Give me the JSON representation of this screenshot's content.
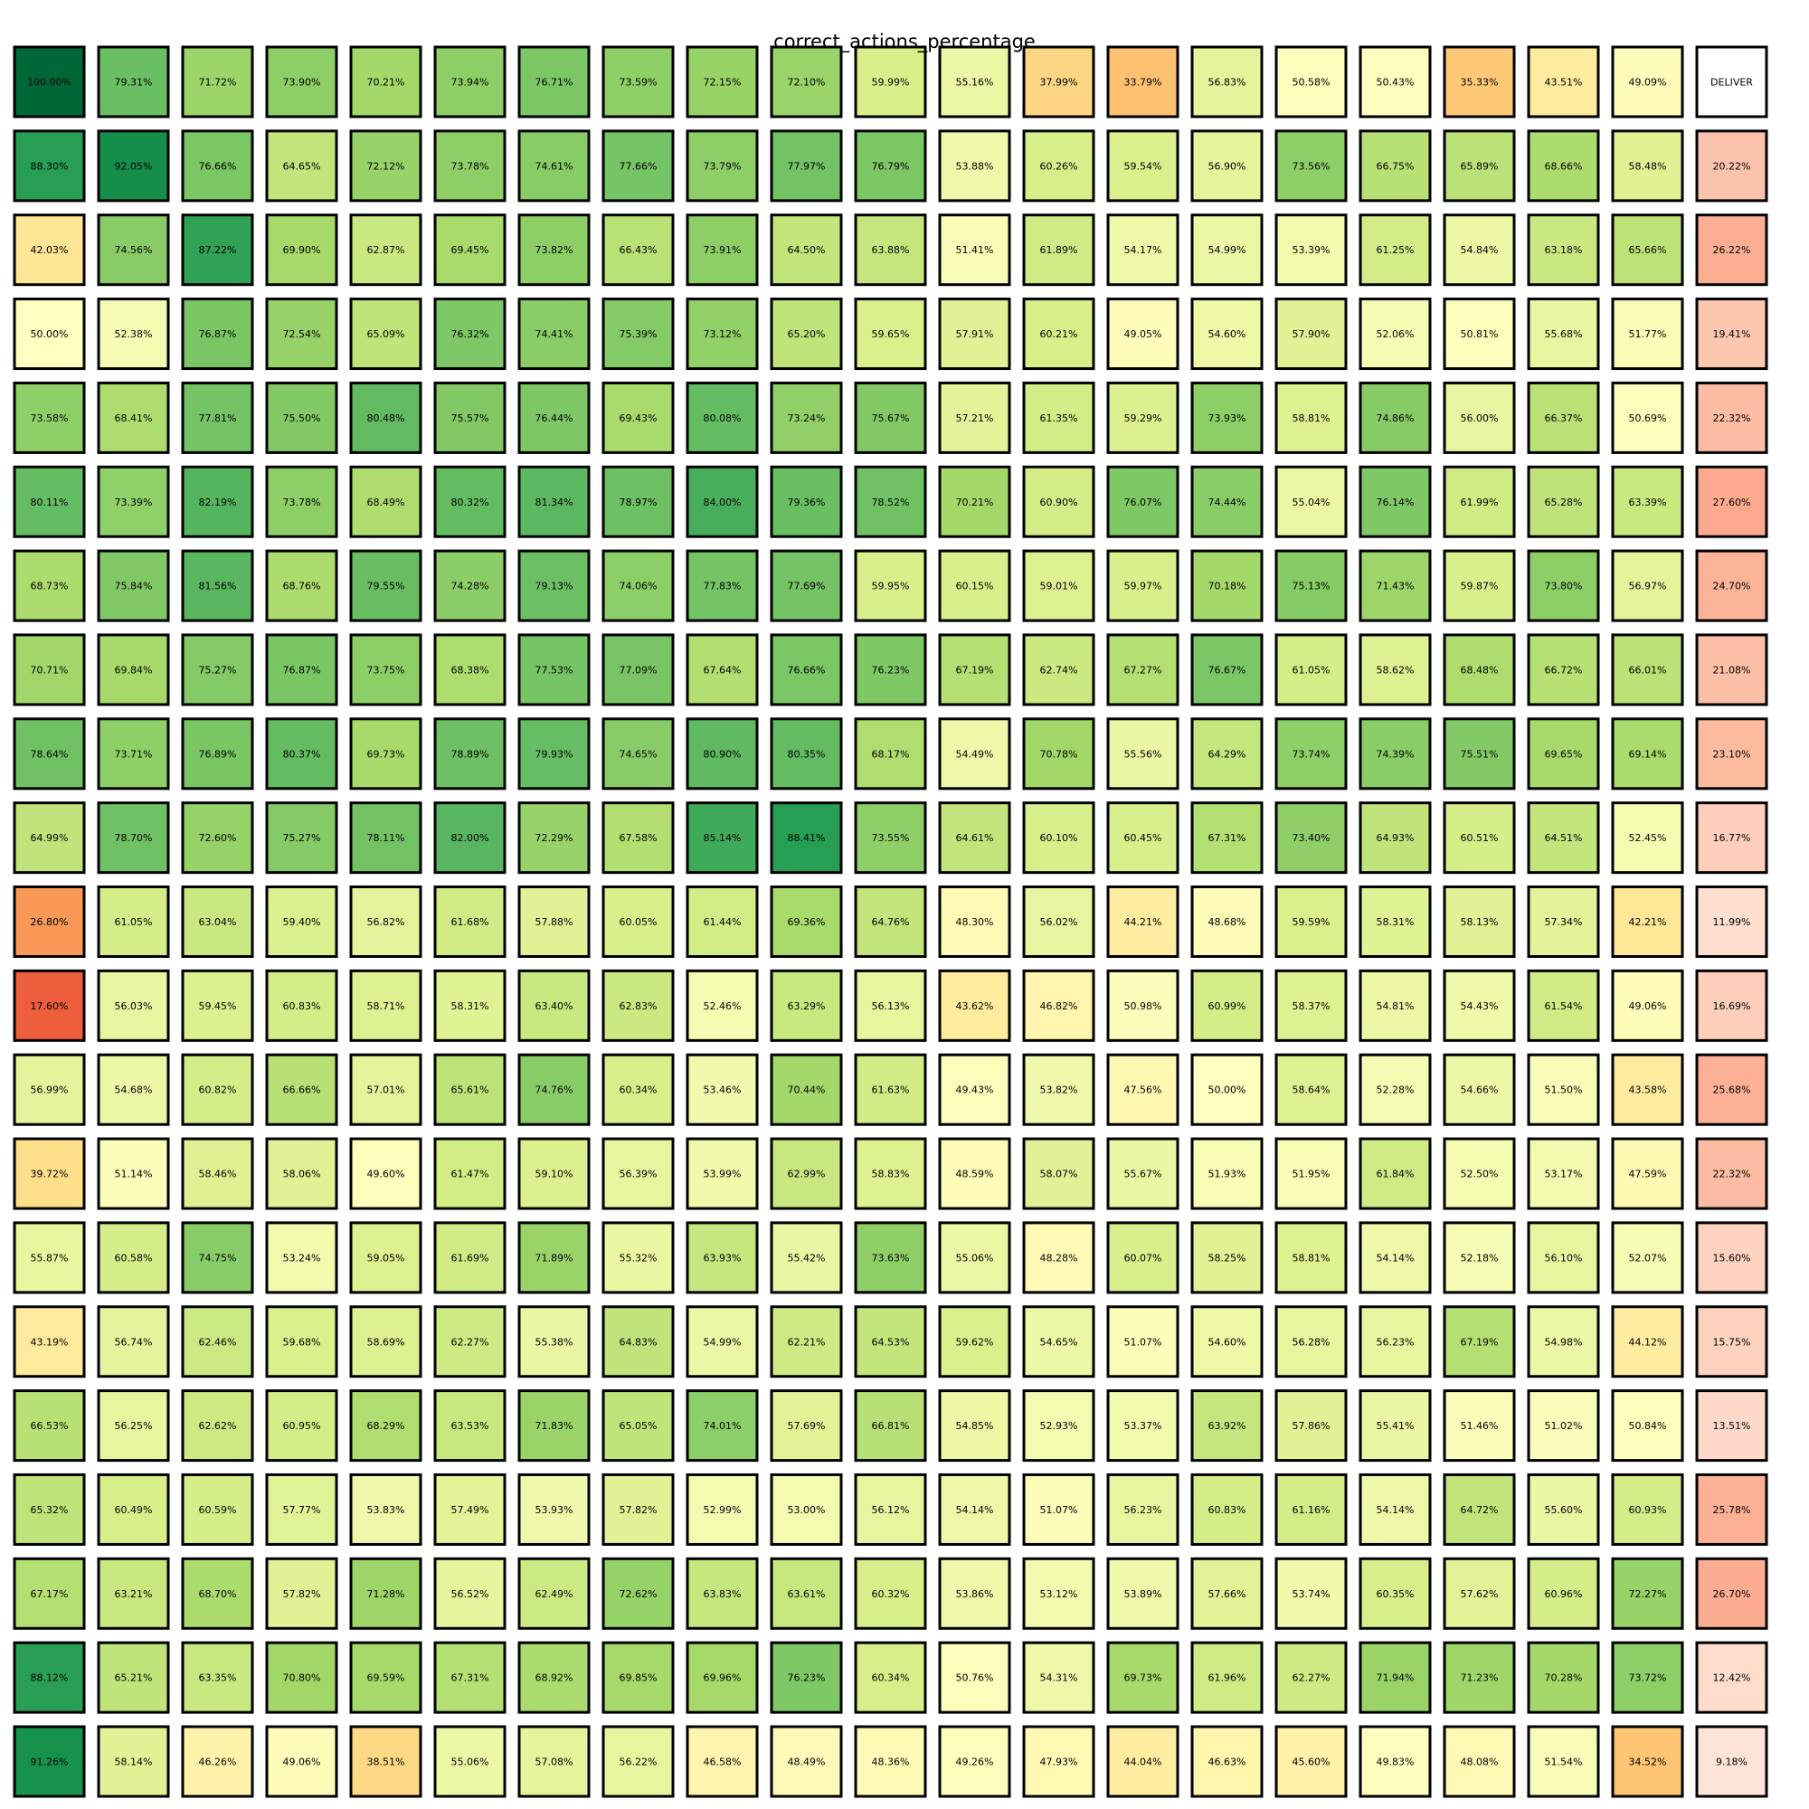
{
  "chart_data": {
    "type": "heatmap",
    "title": "correct_actions_percentage",
    "colormap": "RdYlGn",
    "value_range": [
      0,
      100
    ],
    "unit": "%",
    "rows": [
      [
        "100.00%",
        "79.31%",
        "71.72%",
        "73.90%",
        "70.21%",
        "73.94%",
        "76.71%",
        "73.59%",
        "72.15%",
        "72.10%",
        "59.99%",
        "55.16%",
        "37.99%",
        "33.79%",
        "56.83%",
        "50.58%",
        "50.43%",
        "35.33%",
        "43.51%",
        "49.09%",
        "DELIVER"
      ],
      [
        "88.30%",
        "92.05%",
        "76.66%",
        "64.65%",
        "72.12%",
        "73.78%",
        "74.61%",
        "77.66%",
        "73.79%",
        "77.97%",
        "76.79%",
        "53.88%",
        "60.26%",
        "59.54%",
        "56.90%",
        "73.56%",
        "66.75%",
        "65.89%",
        "68.66%",
        "58.48%",
        "20.22%"
      ],
      [
        "42.03%",
        "74.56%",
        "87.22%",
        "69.90%",
        "62.87%",
        "69.45%",
        "73.82%",
        "66.43%",
        "73.91%",
        "64.50%",
        "63.88%",
        "51.41%",
        "61.89%",
        "54.17%",
        "54.99%",
        "53.39%",
        "61.25%",
        "54.84%",
        "63.18%",
        "65.66%",
        "26.22%"
      ],
      [
        "50.00%",
        "52.38%",
        "76.87%",
        "72.54%",
        "65.09%",
        "76.32%",
        "74.41%",
        "75.39%",
        "73.12%",
        "65.20%",
        "59.65%",
        "57.91%",
        "60.21%",
        "49.05%",
        "54.60%",
        "57.90%",
        "52.06%",
        "50.81%",
        "55.68%",
        "51.77%",
        "19.41%"
      ],
      [
        "73.58%",
        "68.41%",
        "77.81%",
        "75.50%",
        "80.48%",
        "75.57%",
        "76.44%",
        "69.43%",
        "80.08%",
        "73.24%",
        "75.67%",
        "57.21%",
        "61.35%",
        "59.29%",
        "73.93%",
        "58.81%",
        "74.86%",
        "56.00%",
        "66.37%",
        "50.69%",
        "22.32%"
      ],
      [
        "80.11%",
        "73.39%",
        "82.19%",
        "73.78%",
        "68.49%",
        "80.32%",
        "81.34%",
        "78.97%",
        "84.00%",
        "79.36%",
        "78.52%",
        "70.21%",
        "60.90%",
        "76.07%",
        "74.44%",
        "55.04%",
        "76.14%",
        "61.99%",
        "65.28%",
        "63.39%",
        "27.60%"
      ],
      [
        "68.73%",
        "75.84%",
        "81.56%",
        "68.76%",
        "79.55%",
        "74.28%",
        "79.13%",
        "74.06%",
        "77.83%",
        "77.69%",
        "59.95%",
        "60.15%",
        "59.01%",
        "59.97%",
        "70.18%",
        "75.13%",
        "71.43%",
        "59.87%",
        "73.80%",
        "56.97%",
        "24.70%"
      ],
      [
        "70.71%",
        "69.84%",
        "75.27%",
        "76.87%",
        "73.75%",
        "68.38%",
        "77.53%",
        "77.09%",
        "67.64%",
        "76.66%",
        "76.23%",
        "67.19%",
        "62.74%",
        "67.27%",
        "76.67%",
        "61.05%",
        "58.62%",
        "68.48%",
        "66.72%",
        "66.01%",
        "21.08%"
      ],
      [
        "78.64%",
        "73.71%",
        "76.89%",
        "80.37%",
        "69.73%",
        "78.89%",
        "79.93%",
        "74.65%",
        "80.90%",
        "80.35%",
        "68.17%",
        "54.49%",
        "70.78%",
        "55.56%",
        "64.29%",
        "73.74%",
        "74.39%",
        "75.51%",
        "69.65%",
        "69.14%",
        "23.10%"
      ],
      [
        "64.99%",
        "78.70%",
        "72.60%",
        "75.27%",
        "78.11%",
        "82.00%",
        "72.29%",
        "67.58%",
        "85.14%",
        "88.41%",
        "73.55%",
        "64.61%",
        "60.10%",
        "60.45%",
        "67.31%",
        "73.40%",
        "64.93%",
        "60.51%",
        "64.51%",
        "52.45%",
        "16.77%"
      ],
      [
        "26.80%",
        "61.05%",
        "63.04%",
        "59.40%",
        "56.82%",
        "61.68%",
        "57.88%",
        "60.05%",
        "61.44%",
        "69.36%",
        "64.76%",
        "48.30%",
        "56.02%",
        "44.21%",
        "48.68%",
        "59.59%",
        "58.31%",
        "58.13%",
        "57.34%",
        "42.21%",
        "11.99%"
      ],
      [
        "17.60%",
        "56.03%",
        "59.45%",
        "60.83%",
        "58.71%",
        "58.31%",
        "63.40%",
        "62.83%",
        "52.46%",
        "63.29%",
        "56.13%",
        "43.62%",
        "46.82%",
        "50.98%",
        "60.99%",
        "58.37%",
        "54.81%",
        "54.43%",
        "61.54%",
        "49.06%",
        "16.69%"
      ],
      [
        "56.99%",
        "54.68%",
        "60.82%",
        "66.66%",
        "57.01%",
        "65.61%",
        "74.76%",
        "60.34%",
        "53.46%",
        "70.44%",
        "61.63%",
        "49.43%",
        "53.82%",
        "47.56%",
        "50.00%",
        "58.64%",
        "52.28%",
        "54.66%",
        "51.50%",
        "43.58%",
        "25.68%"
      ],
      [
        "39.72%",
        "51.14%",
        "58.46%",
        "58.06%",
        "49.60%",
        "61.47%",
        "59.10%",
        "56.39%",
        "53.99%",
        "62.99%",
        "58.83%",
        "48.59%",
        "58.07%",
        "55.67%",
        "51.93%",
        "51.95%",
        "61.84%",
        "52.50%",
        "53.17%",
        "47.59%",
        "22.32%"
      ],
      [
        "55.87%",
        "60.58%",
        "74.75%",
        "53.24%",
        "59.05%",
        "61.69%",
        "71.89%",
        "55.32%",
        "63.93%",
        "55.42%",
        "73.63%",
        "55.06%",
        "48.28%",
        "60.07%",
        "58.25%",
        "58.81%",
        "54.14%",
        "52.18%",
        "56.10%",
        "52.07%",
        "15.60%"
      ],
      [
        "43.19%",
        "56.74%",
        "62.46%",
        "59.68%",
        "58.69%",
        "62.27%",
        "55.38%",
        "64.83%",
        "54.99%",
        "62.21%",
        "64.53%",
        "59.62%",
        "54.65%",
        "51.07%",
        "54.60%",
        "56.28%",
        "56.23%",
        "67.19%",
        "54.98%",
        "44.12%",
        "15.75%"
      ],
      [
        "66.53%",
        "56.25%",
        "62.62%",
        "60.95%",
        "68.29%",
        "63.53%",
        "71.83%",
        "65.05%",
        "74.01%",
        "57.69%",
        "66.81%",
        "54.85%",
        "52.93%",
        "53.37%",
        "63.92%",
        "57.86%",
        "55.41%",
        "51.46%",
        "51.02%",
        "50.84%",
        "13.51%"
      ],
      [
        "65.32%",
        "60.49%",
        "60.59%",
        "57.77%",
        "53.83%",
        "57.49%",
        "53.93%",
        "57.82%",
        "52.99%",
        "53.00%",
        "56.12%",
        "54.14%",
        "51.07%",
        "56.23%",
        "60.83%",
        "61.16%",
        "54.14%",
        "64.72%",
        "55.60%",
        "60.93%",
        "25.78%"
      ],
      [
        "67.17%",
        "63.21%",
        "68.70%",
        "57.82%",
        "71.28%",
        "56.52%",
        "62.49%",
        "72.62%",
        "63.83%",
        "63.61%",
        "60.32%",
        "53.86%",
        "53.12%",
        "53.89%",
        "57.66%",
        "53.74%",
        "60.35%",
        "57.62%",
        "60.96%",
        "72.27%",
        "26.70%"
      ],
      [
        "88.12%",
        "65.21%",
        "63.35%",
        "70.80%",
        "69.59%",
        "67.31%",
        "68.92%",
        "69.85%",
        "69.96%",
        "76.23%",
        "60.34%",
        "50.76%",
        "54.31%",
        "69.73%",
        "61.96%",
        "62.27%",
        "71.94%",
        "71.23%",
        "70.28%",
        "73.72%",
        "12.42%"
      ],
      [
        "91.26%",
        "58.14%",
        "46.26%",
        "49.06%",
        "38.51%",
        "55.06%",
        "57.08%",
        "56.22%",
        "46.58%",
        "48.49%",
        "48.36%",
        "49.26%",
        "47.93%",
        "44.04%",
        "46.63%",
        "45.60%",
        "49.83%",
        "48.08%",
        "51.54%",
        "34.52%",
        "9.18%"
      ]
    ],
    "last_column_colormap": "Reds",
    "last_column_note_cell": "DELIVER"
  }
}
